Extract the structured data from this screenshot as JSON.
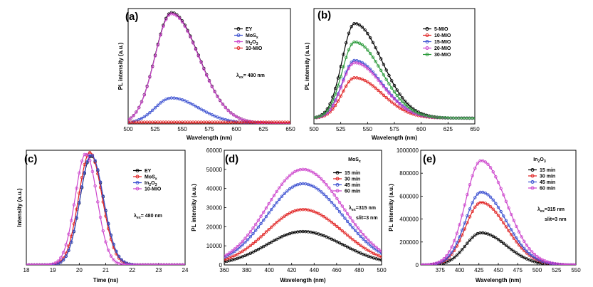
{
  "chart_data": [
    {
      "type": "line",
      "panel_label": "(a)",
      "xlabel": "Wavelength (nm)",
      "ylabel": "PL intensity (a.u.)",
      "xlim": [
        500,
        650
      ],
      "ylim": [
        0,
        100
      ],
      "xticks": [
        "500",
        "525",
        "550",
        "575",
        "600",
        "625",
        "650"
      ],
      "yticks": [],
      "annotation": "λex= 480 nm",
      "legend_position": "top-right",
      "series": [
        {
          "name": "EY",
          "color": "#000000",
          "peak": 540,
          "amp": 96,
          "base": 0.5,
          "wl": 18,
          "wr": 30
        },
        {
          "name": "MoSx",
          "color": "#3a4fd0",
          "peak": 540,
          "amp": 22,
          "base": 0.5,
          "wl": 18,
          "wr": 30
        },
        {
          "name": "In2O3",
          "color": "#cc44cc",
          "peak": 540,
          "amp": 95,
          "base": 0.5,
          "wl": 18,
          "wr": 30
        },
        {
          "name": "10-MIO",
          "color": "#e02020",
          "peak": 540,
          "amp": 0,
          "base": 1.5,
          "wl": 18,
          "wr": 30
        }
      ]
    },
    {
      "type": "line",
      "panel_label": "(b)",
      "xlabel": "Wavelength (nm)",
      "ylabel": "PL intensity (a.u.)",
      "xlim": [
        500,
        650
      ],
      "ylim": [
        0,
        100
      ],
      "xticks": [
        "500",
        "525",
        "550",
        "575",
        "600",
        "625",
        "650"
      ],
      "yticks": [],
      "annotation": "",
      "legend_position": "top-right",
      "series": [
        {
          "name": "5-MIO",
          "color": "#000000",
          "peak": 538,
          "amp": 82,
          "base": 5,
          "wl": 14,
          "wr": 30
        },
        {
          "name": "10-MIO",
          "color": "#e02020",
          "peak": 538,
          "amp": 35,
          "base": 5,
          "wl": 14,
          "wr": 30
        },
        {
          "name": "15-MIO",
          "color": "#3a4fd0",
          "peak": 538,
          "amp": 50,
          "base": 5,
          "wl": 14,
          "wr": 30
        },
        {
          "name": "20-MIO",
          "color": "#cc44cc",
          "peak": 538,
          "amp": 48,
          "base": 5,
          "wl": 14,
          "wr": 30
        },
        {
          "name": "30-MIO",
          "color": "#2a9a3a",
          "peak": 538,
          "amp": 66,
          "base": 5,
          "wl": 14,
          "wr": 30
        }
      ]
    },
    {
      "type": "line",
      "panel_label": "(c)",
      "xlabel": "Time (ns)",
      "ylabel": "Intensity (a.u.)",
      "xlim": [
        18,
        24
      ],
      "ylim": [
        0,
        100
      ],
      "xticks": [
        "18",
        "19",
        "20",
        "21",
        "22",
        "23",
        "24"
      ],
      "yticks": [],
      "annotation": "λex= 480 nm",
      "legend_position": "top-right",
      "series": [
        {
          "name": "EY",
          "color": "#000000",
          "peak": 20.45,
          "amp": 95,
          "base": 0,
          "wl": 0.5,
          "wr": 0.55
        },
        {
          "name": "MoSx",
          "color": "#e02020",
          "peak": 20.4,
          "amp": 98,
          "base": 0,
          "wl": 0.5,
          "wr": 0.55
        },
        {
          "name": "In2O3",
          "color": "#3a4fd0",
          "peak": 20.45,
          "amp": 96,
          "base": 0,
          "wl": 0.5,
          "wr": 0.55
        },
        {
          "name": "10-MIO",
          "color": "#cc44cc",
          "peak": 20.25,
          "amp": 97,
          "base": 0,
          "wl": 0.48,
          "wr": 0.5
        }
      ]
    },
    {
      "type": "line",
      "panel_label": "(d)",
      "title": "MoSx",
      "xlabel": "Wavelength (nm)",
      "ylabel": "PL intensity (a.u.)",
      "xlim": [
        360,
        500
      ],
      "ylim": [
        0,
        60000
      ],
      "xticks": [
        "360",
        "380",
        "400",
        "420",
        "440",
        "460",
        "480",
        "500"
      ],
      "yticks": [
        "0",
        "10000",
        "20000",
        "30000",
        "40000",
        "50000",
        "60000"
      ],
      "annotation": "λex=315 nm",
      "annotation2": "slit=3 nm",
      "legend_position": "top-right",
      "series": [
        {
          "name": "15 min",
          "color": "#000000",
          "peak": 430,
          "amp": 17500,
          "base": 0,
          "wl": 38,
          "wr": 42
        },
        {
          "name": "30 min",
          "color": "#e02020",
          "peak": 430,
          "amp": 29000,
          "base": 0,
          "wl": 38,
          "wr": 42
        },
        {
          "name": "45 min",
          "color": "#3a4fd0",
          "peak": 430,
          "amp": 42500,
          "base": 0,
          "wl": 38,
          "wr": 42
        },
        {
          "name": "60 min",
          "color": "#cc44cc",
          "peak": 430,
          "amp": 50000,
          "base": 0,
          "wl": 38,
          "wr": 42
        }
      ]
    },
    {
      "type": "line",
      "panel_label": "(e)",
      "title": "In2O3",
      "xlabel": "Wavelength (nm)",
      "ylabel": "PL intensity (a.u.)",
      "xlim": [
        350,
        550
      ],
      "ylim": [
        0,
        1000000
      ],
      "xticks": [
        "375",
        "400",
        "425",
        "450",
        "475",
        "500",
        "525",
        "550"
      ],
      "yticks": [
        "0",
        "200000",
        "400000",
        "600000",
        "800000",
        "1000000"
      ],
      "annotation": "λex=315 nm",
      "annotation2": "slit=3 nm",
      "legend_position": "top-right",
      "series": [
        {
          "name": "15 min",
          "color": "#000000",
          "peak": 428,
          "amp": 280000,
          "base": 0,
          "wl": 24,
          "wr": 38
        },
        {
          "name": "30 min",
          "color": "#e02020",
          "peak": 428,
          "amp": 545000,
          "base": 0,
          "wl": 24,
          "wr": 38
        },
        {
          "name": "45 min",
          "color": "#3a4fd0",
          "peak": 428,
          "amp": 635000,
          "base": 0,
          "wl": 24,
          "wr": 38
        },
        {
          "name": "60 min",
          "color": "#cc44cc",
          "peak": 428,
          "amp": 910000,
          "base": 0,
          "wl": 24,
          "wr": 38
        }
      ]
    }
  ]
}
